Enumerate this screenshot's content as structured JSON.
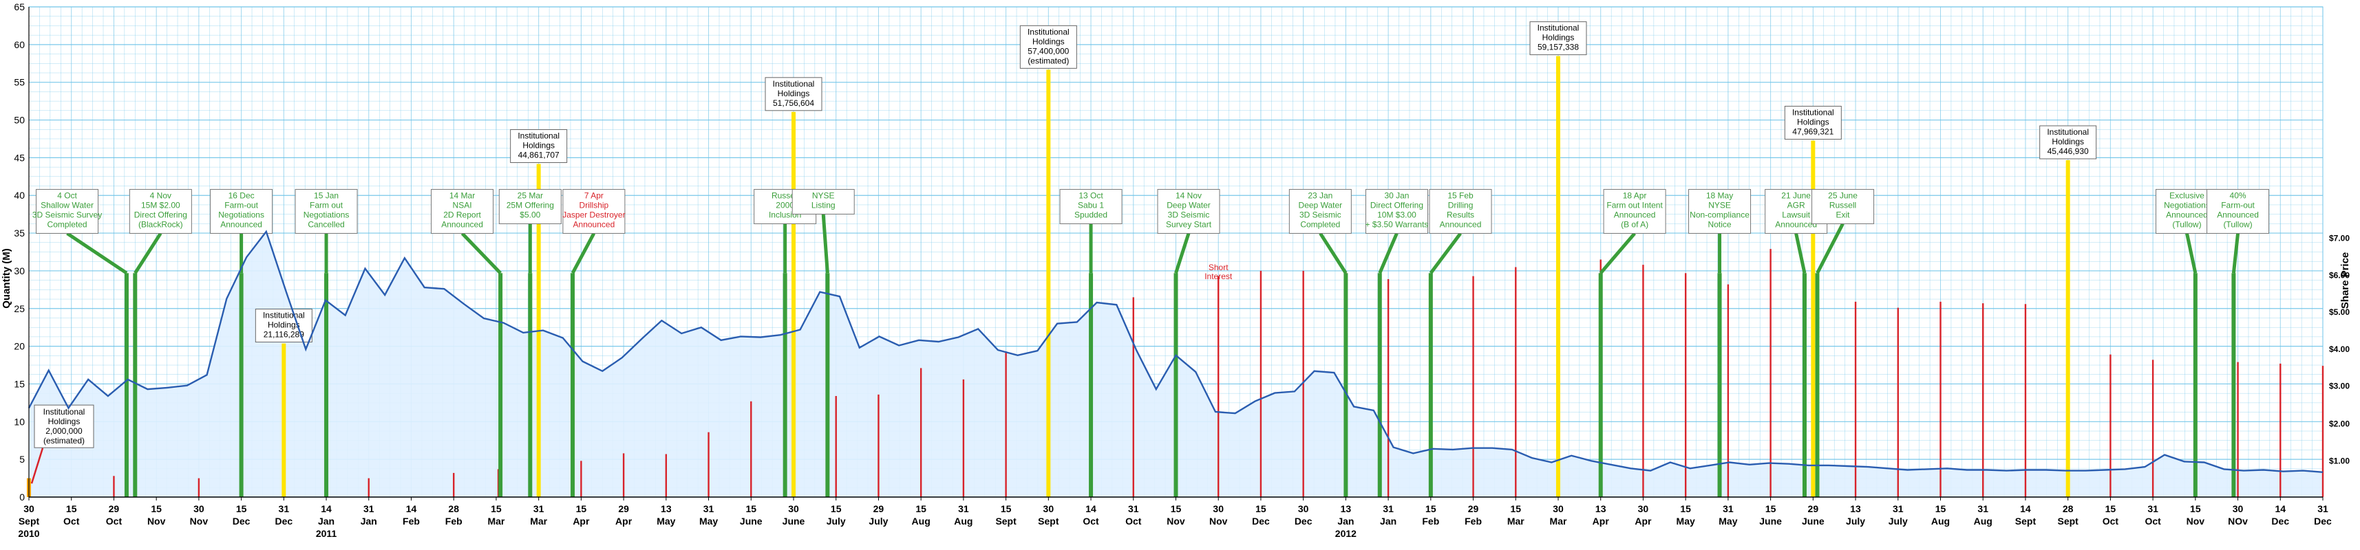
{
  "chart_data": {
    "type": "line",
    "title": "",
    "ylabel_left": "Quantity (M)",
    "ylabel_right": "Share Price",
    "ylim": [
      0,
      65
    ],
    "y_ticks": [
      0,
      5,
      10,
      15,
      20,
      25,
      30,
      35,
      40,
      45,
      50,
      55,
      60,
      65
    ],
    "price_ticks": [
      {
        "label": "$1.00",
        "q": 4.9
      },
      {
        "label": "$2.00",
        "q": 9.8
      },
      {
        "label": "$3.00",
        "q": 14.8
      },
      {
        "label": "$4.00",
        "q": 19.7
      },
      {
        "label": "$5.00",
        "q": 24.6
      },
      {
        "label": "$6.00",
        "q": 29.5
      },
      {
        "label": "$7.00",
        "q": 34.4
      }
    ],
    "x_ticks": [
      {
        "d": "30",
        "m": "Sept",
        "y": "2010"
      },
      {
        "d": "15",
        "m": "Oct"
      },
      {
        "d": "29",
        "m": "Oct"
      },
      {
        "d": "15",
        "m": "Nov"
      },
      {
        "d": "30",
        "m": "Nov"
      },
      {
        "d": "15",
        "m": "Dec"
      },
      {
        "d": "31",
        "m": "Dec"
      },
      {
        "d": "14",
        "m": "Jan",
        "y": "2011"
      },
      {
        "d": "31",
        "m": "Jan"
      },
      {
        "d": "14",
        "m": "Feb"
      },
      {
        "d": "28",
        "m": "Feb"
      },
      {
        "d": "15",
        "m": "Mar"
      },
      {
        "d": "31",
        "m": "Mar"
      },
      {
        "d": "15",
        "m": "Apr"
      },
      {
        "d": "29",
        "m": "Apr"
      },
      {
        "d": "13",
        "m": "May"
      },
      {
        "d": "31",
        "m": "May"
      },
      {
        "d": "15",
        "m": "June"
      },
      {
        "d": "30",
        "m": "June"
      },
      {
        "d": "15",
        "m": "July"
      },
      {
        "d": "29",
        "m": "July"
      },
      {
        "d": "15",
        "m": "Aug"
      },
      {
        "d": "31",
        "m": "Aug"
      },
      {
        "d": "15",
        "m": "Sept"
      },
      {
        "d": "30",
        "m": "Sept"
      },
      {
        "d": "14",
        "m": "Oct"
      },
      {
        "d": "31",
        "m": "Oct"
      },
      {
        "d": "15",
        "m": "Nov"
      },
      {
        "d": "30",
        "m": "Nov"
      },
      {
        "d": "15",
        "m": "Dec"
      },
      {
        "d": "30",
        "m": "Dec"
      },
      {
        "d": "13",
        "m": "Jan",
        "y": "2012"
      },
      {
        "d": "31",
        "m": "Jan"
      },
      {
        "d": "15",
        "m": "Feb"
      },
      {
        "d": "29",
        "m": "Feb"
      },
      {
        "d": "15",
        "m": "Mar"
      },
      {
        "d": "30",
        "m": "Mar"
      },
      {
        "d": "13",
        "m": "Apr"
      },
      {
        "d": "30",
        "m": "Apr"
      },
      {
        "d": "15",
        "m": "May"
      },
      {
        "d": "31",
        "m": "May"
      },
      {
        "d": "15",
        "m": "June"
      },
      {
        "d": "29",
        "m": "June"
      },
      {
        "d": "13",
        "m": "July"
      },
      {
        "d": "31",
        "m": "July"
      },
      {
        "d": "15",
        "m": "Aug"
      },
      {
        "d": "31",
        "m": "Aug"
      },
      {
        "d": "14",
        "m": "Sept"
      },
      {
        "d": "28",
        "m": "Sept"
      },
      {
        "d": "15",
        "m": "Oct"
      },
      {
        "d": "31",
        "m": "Oct"
      },
      {
        "d": "15",
        "m": "Nov"
      },
      {
        "d": "30",
        "m": "NOv"
      },
      {
        "d": "14",
        "m": "Dec"
      },
      {
        "d": "31",
        "m": "Dec"
      }
    ],
    "series": [
      {
        "values": [
          11.8,
          16.8,
          11.8,
          15.6,
          13.4,
          15.6,
          14.3,
          14.5,
          14.8,
          16.2,
          26.3,
          31.8,
          35.2,
          27.3,
          19.6,
          26.1,
          24.1,
          30.3,
          26.8,
          31.7,
          27.8,
          27.6,
          25.6,
          23.7,
          23.1,
          21.8,
          22.1,
          21.1,
          18,
          16.7,
          18.5,
          21,
          23.4,
          21.7,
          22.5,
          20.8,
          21.3,
          21.2,
          21.5,
          22.2,
          27.2,
          26.6,
          19.8,
          21.3,
          20.1,
          20.8,
          20.6,
          21.2,
          22.3,
          19.5,
          18.8,
          19.4,
          23,
          23.2,
          25.8,
          25.5,
          19.5,
          14.3,
          18.8,
          16.6,
          11.3,
          11.1,
          12.7,
          13.8,
          14,
          16.7,
          16.5,
          12,
          11.5,
          6.6,
          5.8,
          6.4,
          6.3,
          6.5,
          6.5,
          6.3,
          5.2,
          4.6,
          5.5,
          4.8,
          4.3,
          3.8,
          3.5,
          4.6,
          3.8,
          4.2,
          4.6,
          4.3,
          4.5,
          4.4,
          4.2,
          4.2,
          4.1,
          4,
          3.8,
          3.6,
          3.7,
          3.8,
          3.6,
          3.6,
          3.5,
          3.6,
          3.6,
          3.5,
          3.5,
          3.6,
          3.7,
          4,
          5.6,
          4.7,
          4.6,
          3.7,
          3.5,
          3.6,
          3.4,
          3.5,
          3.3
        ]
      }
    ],
    "short_interest_label": "Short\nInterest",
    "short_interest_ticks": [
      2,
      4,
      6,
      8,
      10,
      11.05,
      12,
      13,
      14,
      15,
      16,
      17,
      18,
      19,
      20,
      21,
      22,
      23,
      24,
      25,
      26,
      27,
      28,
      29,
      30,
      31,
      32,
      33,
      34,
      35,
      36,
      37,
      38,
      39,
      40,
      41,
      42,
      43,
      44,
      45,
      46,
      47,
      48,
      49,
      50,
      51,
      52,
      53,
      54
    ],
    "short_interest_values": [
      2.8,
      2.5,
      2.9,
      2.5,
      3.2,
      3.7,
      3.5,
      4.8,
      5.8,
      5.7,
      8.6,
      12.7,
      13.3,
      13.4,
      13.6,
      17.1,
      15.6,
      19.3,
      25.9,
      28.4,
      26.5,
      29.3,
      29.3,
      30,
      30,
      29.9,
      28.9,
      29.2,
      29.3,
      30.5,
      32,
      31.5,
      30.8,
      29.7,
      28.2,
      32.9,
      25.8,
      25.9,
      25.1,
      25.9,
      25.7,
      25.6,
      25.4,
      18.9,
      18.2,
      17.9,
      17.9,
      17.7,
      17.4,
      16.7,
      16.7,
      16.2,
      16,
      15.9,
      15.3
    ],
    "institutional_holdings": [
      {
        "t": 0,
        "label": "Institutional\nHoldings\n2,000,000\n(estimated)",
        "value": 2.0
      },
      {
        "t": 6,
        "label": "Institutional\nHoldings\n21,116,289",
        "value": 21.1
      },
      {
        "t": 12,
        "label": "Institutional\nHoldings\n44,861,707",
        "value": 44.9
      },
      {
        "t": 18,
        "label": "Institutional\nHoldings\n51,756,604",
        "value": 51.8
      },
      {
        "t": 24,
        "label": "Institutional\nHoldings\n57,400,000\n(estimated)",
        "value": 57.4
      },
      {
        "t": 36,
        "label": "Institutional\nHoldings\n59,157,338",
        "value": 59.2
      },
      {
        "t": 42,
        "label": "Institutional\nHoldings\n47,969,321",
        "value": 48.0
      },
      {
        "t": 48,
        "label": "Institutional\nHoldings\n45,446,930",
        "value": 45.4
      }
    ],
    "events": [
      {
        "t": 2.3,
        "label": "4 Oct\nShallow Water\n3D Seismic Survey\nCompleted",
        "color": "green",
        "box": 0.9
      },
      {
        "t": 2.5,
        "label": "4 Nov\n15M $2.00\nDirect Offering\n(BlackRock)",
        "color": "green",
        "box": 3.1
      },
      {
        "t": 5,
        "label": "16 Dec\nFarm-out\nNegotiations\nAnnounced",
        "color": "green",
        "box": 5
      },
      {
        "t": 7,
        "label": "15 Jan\nFarm out\nNegotiations\nCancelled",
        "color": "green",
        "box": 7
      },
      {
        "t": 11.1,
        "label": "14 Mar\nNSAI\n2D Report\nAnnounced",
        "color": "green",
        "box": 10.2
      },
      {
        "t": 11.8,
        "label": "25 Mar\n25M Offering\n$5.00",
        "color": "green",
        "box": 11.8
      },
      {
        "t": 12.8,
        "label": "7 Apr\nDrillship\nJasper Destroyer\nAnnounced",
        "color": "red",
        "box": 13.3
      },
      {
        "t": 17.8,
        "label": "Russell\n2000\nInclusion",
        "color": "green",
        "box": 17.8
      },
      {
        "t": 18.8,
        "label": "NYSE\nListing",
        "color": "green",
        "box": 18.7
      },
      {
        "t": 25,
        "label": "13 Oct\nSabu 1\nSpudded",
        "color": "green",
        "box": 25
      },
      {
        "t": 27,
        "label": "14 Nov\nDeep Water\n3D Seismic\nSurvey Start",
        "color": "green",
        "box": 27.3
      },
      {
        "t": 31,
        "label": "23 Jan\nDeep Water\n3D Seismic\nCompleted",
        "color": "green",
        "box": 30.4
      },
      {
        "t": 31.8,
        "label": "30 Jan\nDirect Offering\n10M $3.00\n+ $3.50 Warrants",
        "color": "green",
        "box": 32.2
      },
      {
        "t": 33,
        "label": "15 Feb\nDrilling\nResults\nAnnounced",
        "color": "green",
        "box": 33.7
      },
      {
        "t": 37,
        "label": "18 Apr\nFarm out Intent\nAnnounced\n(B of A)",
        "color": "green",
        "box": 37.8
      },
      {
        "t": 39.8,
        "label": "18 May\nNYSE\nNon-compliance\nNotice",
        "color": "green",
        "box": 39.8
      },
      {
        "t": 41.8,
        "label": "21 June\nAGR\nLawsuit\nAnnounced",
        "color": "green",
        "box": 41.6
      },
      {
        "t": 42.1,
        "label": "25 June\nRussell\nExit",
        "color": "green",
        "box": 42.7
      },
      {
        "t": 51,
        "label": "Exclusive\nNegotiations\nAnnounced\n(Tullow)",
        "color": "green",
        "box": 50.8
      },
      {
        "t": 51.9,
        "label": "40%\nFarm-out\nAnnounced\n(Tullow)",
        "color": "green",
        "box": 52
      }
    ],
    "grid": true,
    "colors": {
      "line": "#2a5db0",
      "fill": "#dfefff",
      "grid": "#6cc3e8",
      "inst": "#ffe400",
      "inst_base": "#f5a100",
      "event": "#3a9e3a",
      "event_text_red": "#d8232a",
      "short": "#d8232a"
    }
  }
}
